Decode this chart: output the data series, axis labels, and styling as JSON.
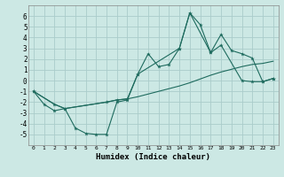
{
  "xlabel": "Humidex (Indice chaleur)",
  "bg_color": "#cce8e4",
  "grid_color": "#aaccca",
  "line_color": "#1e6b5e",
  "xlim": [
    -0.5,
    23.5
  ],
  "ylim": [
    -6,
    7
  ],
  "yticks": [
    -5,
    -4,
    -3,
    -2,
    -1,
    0,
    1,
    2,
    3,
    4,
    5,
    6
  ],
  "xticks": [
    0,
    1,
    2,
    3,
    4,
    5,
    6,
    7,
    8,
    9,
    10,
    11,
    12,
    13,
    14,
    15,
    16,
    17,
    18,
    19,
    20,
    21,
    22,
    23
  ],
  "line1_x": [
    0,
    1,
    2,
    3,
    4,
    5,
    6,
    7,
    8,
    9,
    10,
    11,
    12,
    13,
    14,
    15,
    16,
    17,
    18,
    19,
    20,
    21,
    22,
    23
  ],
  "line1_y": [
    -1.0,
    -2.2,
    -2.8,
    -2.6,
    -4.4,
    -4.9,
    -5.0,
    -5.0,
    -2.0,
    -1.8,
    0.6,
    2.5,
    1.3,
    1.5,
    3.0,
    6.3,
    5.2,
    2.6,
    4.3,
    2.8,
    2.5,
    2.1,
    -0.1,
    0.2
  ],
  "line2_x": [
    0,
    2,
    3,
    7,
    8,
    9,
    10,
    14,
    15,
    17,
    18,
    20,
    21,
    22,
    23
  ],
  "line2_y": [
    -1.0,
    -2.2,
    -2.6,
    -2.0,
    -1.8,
    -1.7,
    -1.5,
    -0.5,
    -0.2,
    0.5,
    0.8,
    1.3,
    1.5,
    1.6,
    1.8
  ],
  "line3_x": [
    0,
    2,
    3,
    7,
    8,
    9,
    10,
    14,
    15,
    17,
    18,
    20,
    21,
    22,
    23
  ],
  "line3_y": [
    -1.0,
    -2.2,
    -2.6,
    -2.0,
    -1.8,
    -1.7,
    0.6,
    3.0,
    6.3,
    2.6,
    3.3,
    0.0,
    -0.1,
    -0.1,
    0.2
  ]
}
